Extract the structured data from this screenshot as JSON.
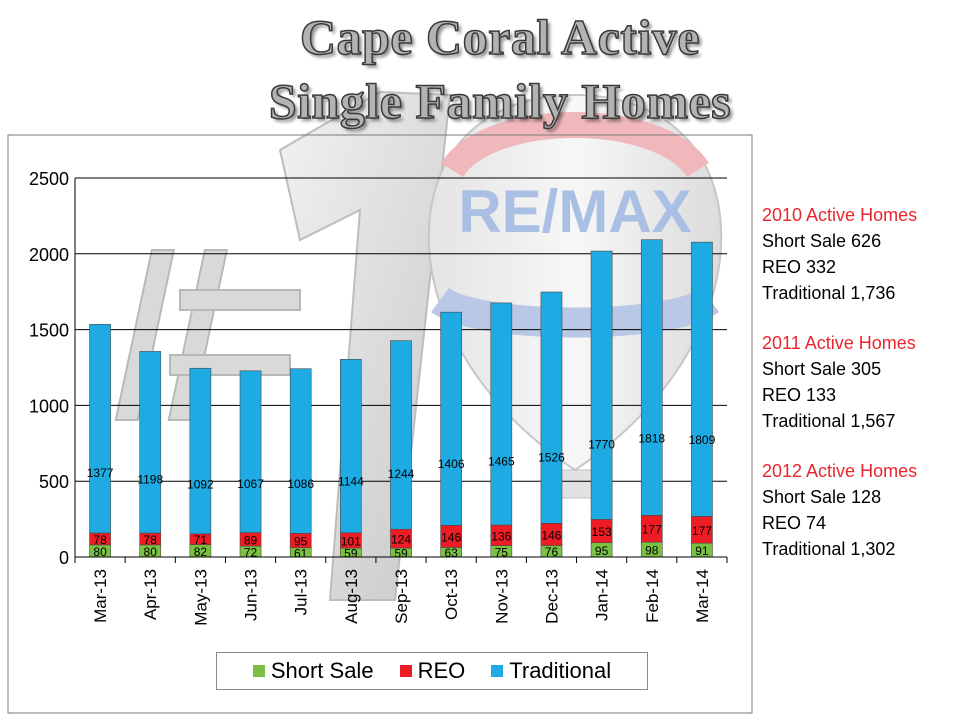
{
  "title": {
    "line1": "Cape Coral Active",
    "line2": "Single Family Homes"
  },
  "colors": {
    "short_sale": "#7ac143",
    "reo": "#ee1c25",
    "traditional": "#1eabe3",
    "header_red": "#e8262d"
  },
  "chart_data": {
    "type": "bar",
    "stacked": true,
    "categories": [
      "Mar-13",
      "Apr-13",
      "May-13",
      "Jun-13",
      "Jul-13",
      "Aug-13",
      "Sep-13",
      "Oct-13",
      "Nov-13",
      "Dec-13",
      "Jan-14",
      "Feb-14",
      "Mar-14"
    ],
    "series": [
      {
        "name": "Short Sale",
        "values": [
          80,
          80,
          82,
          72,
          61,
          59,
          59,
          63,
          75,
          76,
          95,
          98,
          91
        ]
      },
      {
        "name": "REO",
        "values": [
          78,
          78,
          71,
          89,
          95,
          101,
          124,
          146,
          136,
          146,
          153,
          177,
          177
        ]
      },
      {
        "name": "Traditional",
        "values": [
          1377,
          1198,
          1092,
          1067,
          1086,
          1144,
          1244,
          1406,
          1465,
          1526,
          1770,
          1818,
          1809
        ]
      }
    ],
    "ylim": [
      0,
      2500
    ],
    "yticks": [
      "0",
      "500",
      "1000",
      "1500",
      "2000",
      "2500"
    ],
    "grid": true,
    "legend": "bottom"
  },
  "legend": {
    "short_sale": "Short Sale",
    "reo": "REO",
    "traditional": "Traditional"
  },
  "sidebar": {
    "y2010": {
      "header": "2010 Active Homes",
      "short_sale": "Short Sale 626",
      "reo": "REO 332",
      "traditional": "Traditional 1,736"
    },
    "y2011": {
      "header": "2011  Active Homes",
      "short_sale": "Short Sale 305",
      "reo": "REO 133",
      "traditional": "Traditional 1,567"
    },
    "y2012": {
      "header": "2012  Active Homes",
      "short_sale": "Short Sale 128",
      "reo": "REO 74",
      "traditional": "Traditional 1,302"
    }
  },
  "background": {
    "logo_text": "RE/MAX"
  }
}
